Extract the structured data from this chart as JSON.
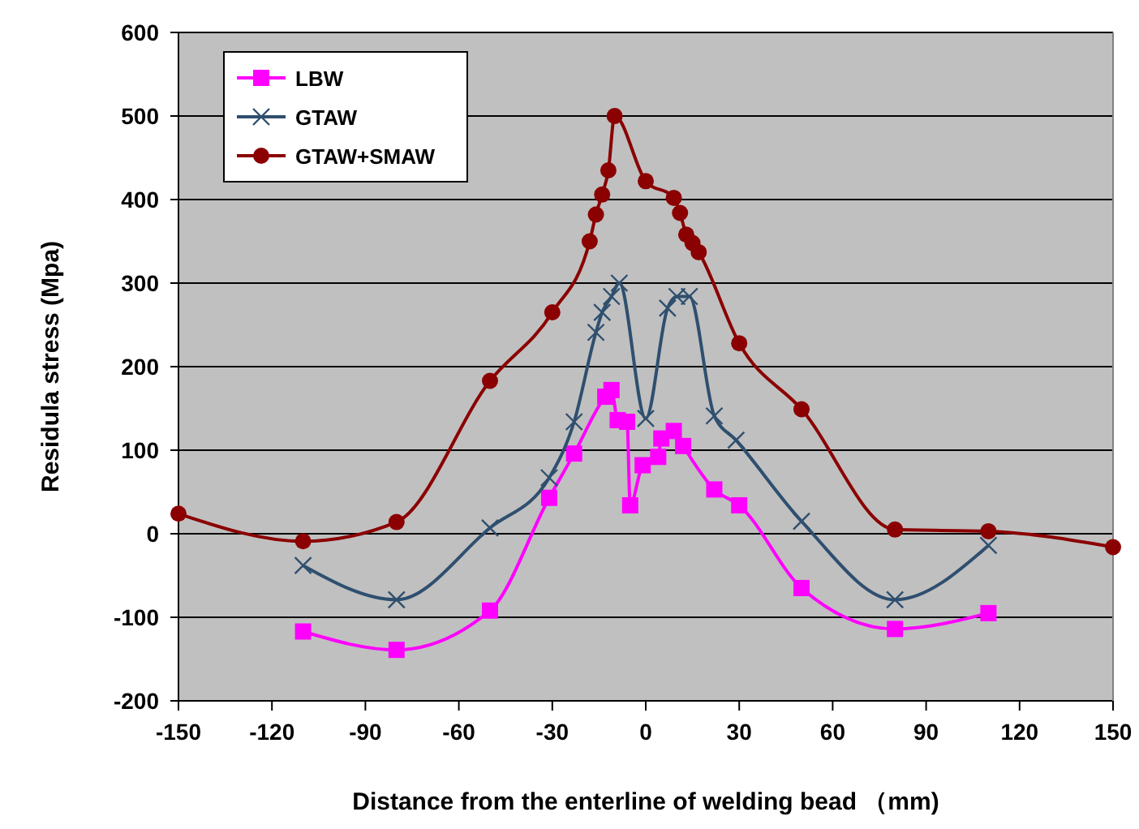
{
  "chart_data": {
    "type": "line",
    "xlabel": "Distance from the enterline of welding bead （mm)",
    "ylabel": "Residula stress (Mpa)",
    "xlim": [
      -150,
      150
    ],
    "xticks": [
      -150,
      -120,
      -90,
      -60,
      -30,
      0,
      30,
      60,
      90,
      120,
      150
    ],
    "ylim": [
      -200,
      600
    ],
    "yticks": [
      -200,
      -100,
      0,
      100,
      200,
      300,
      400,
      500,
      600
    ],
    "grid": "y",
    "legend": "top left",
    "series": [
      {
        "name": "LBW",
        "color": "#ff00ff",
        "marker": "square",
        "x": [
          -110,
          -80,
          -50,
          -31,
          -23,
          -13,
          -11,
          -9,
          -6,
          -5,
          -1,
          4,
          5,
          9,
          12,
          22,
          30,
          50,
          80,
          110
        ],
        "values": [
          -117,
          -139,
          -92,
          43,
          96,
          164,
          172,
          136,
          134,
          34,
          82,
          92,
          114,
          123,
          105,
          53,
          34,
          -65,
          -114,
          -95
        ]
      },
      {
        "name": "GTAW",
        "color": "#2f4f6f",
        "marker": "cross",
        "x": [
          -110,
          -80,
          -50,
          -31,
          -23,
          -16,
          -14,
          -11,
          -8.5,
          0,
          7,
          10,
          14,
          22,
          29,
          50,
          80,
          110
        ],
        "values": [
          -38,
          -79,
          7,
          67,
          134,
          241,
          265,
          284,
          300,
          138,
          270,
          284,
          284,
          141,
          112,
          15,
          -79,
          -14
        ]
      },
      {
        "name": "GTAW+SMAW",
        "color": "#8b0000",
        "marker": "circle",
        "x": [
          -150,
          -110,
          -80,
          -50,
          -30,
          -18,
          -16,
          -14,
          -12,
          -10,
          0,
          9,
          11,
          13,
          15,
          17,
          30,
          50,
          80,
          110,
          150
        ],
        "values": [
          24,
          -9,
          14,
          183,
          265,
          350,
          382,
          406,
          435,
          500,
          422,
          402,
          384,
          358,
          348,
          337,
          228,
          149,
          5,
          3,
          -16
        ]
      }
    ]
  }
}
